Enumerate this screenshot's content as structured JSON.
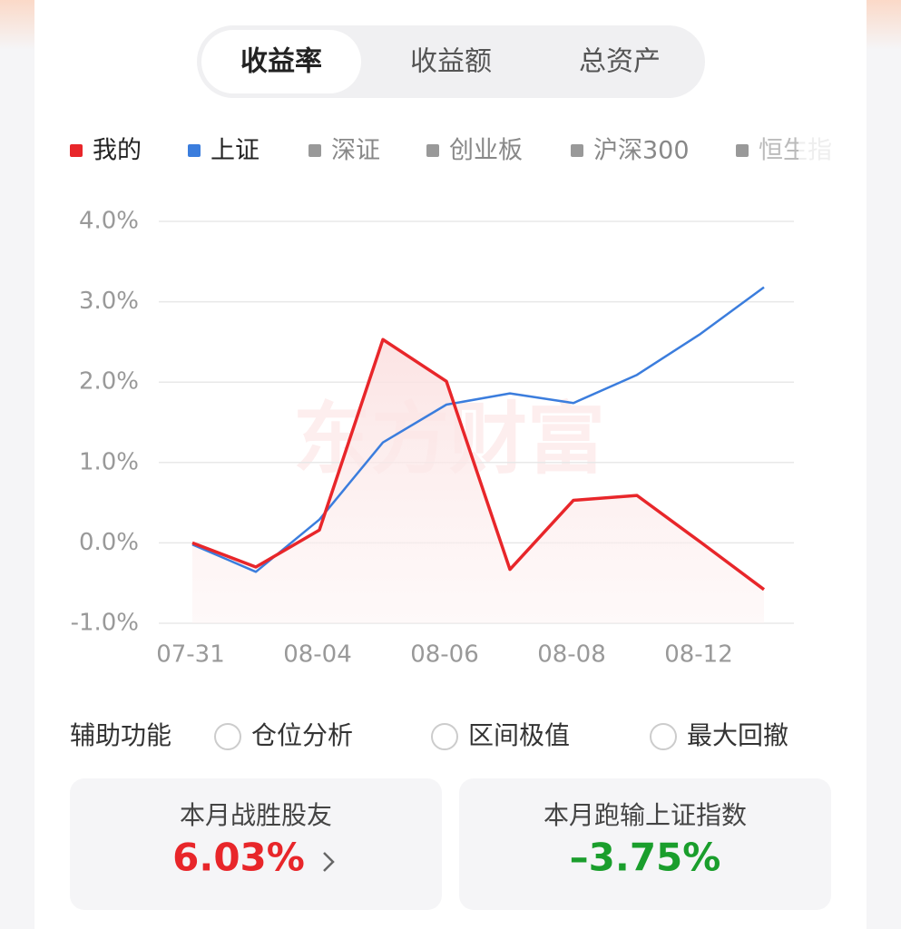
{
  "tabs": [
    "收益率",
    "收益额",
    "总资产"
  ],
  "chart_data": {
    "type": "line",
    "categories": [
      "07-31",
      null,
      "08-04",
      null,
      "08-06",
      null,
      "08-08",
      null,
      "08-12",
      null
    ],
    "series": [
      {
        "name": "我的",
        "color": "#e8262a",
        "values": [
          0.0,
          -0.3,
          0.16,
          2.53,
          2.01,
          -0.33,
          0.53,
          0.59,
          0.01,
          -0.58
        ]
      },
      {
        "name": "上证",
        "color": "#3b7ddd",
        "values": [
          -0.02,
          -0.36,
          0.29,
          1.25,
          1.72,
          1.86,
          1.74,
          2.09,
          2.6,
          3.18
        ]
      }
    ],
    "legend_inactive": [
      "深证",
      "创业板",
      "沪深300",
      "恒生指"
    ],
    "ylim": [
      -1,
      4
    ],
    "yticks": [
      {
        "value": -1,
        "label": "-1.0%"
      },
      {
        "value": 0,
        "label": "0.0%"
      },
      {
        "value": 1,
        "label": "1.0%"
      },
      {
        "value": 2,
        "label": "2.0%"
      },
      {
        "value": 3,
        "label": "3.0%"
      },
      {
        "value": 4,
        "label": "4.0%"
      }
    ],
    "grid": true,
    "watermark": "东方财富"
  },
  "tools": {
    "label": "辅助功能",
    "options": [
      "仓位分析",
      "区间极值",
      "最大回撤"
    ]
  },
  "cards": [
    {
      "title": "本月战胜股友",
      "value": "6.03%"
    },
    {
      "title": "本月跑输上证指数",
      "value": "–3.75%"
    }
  ]
}
